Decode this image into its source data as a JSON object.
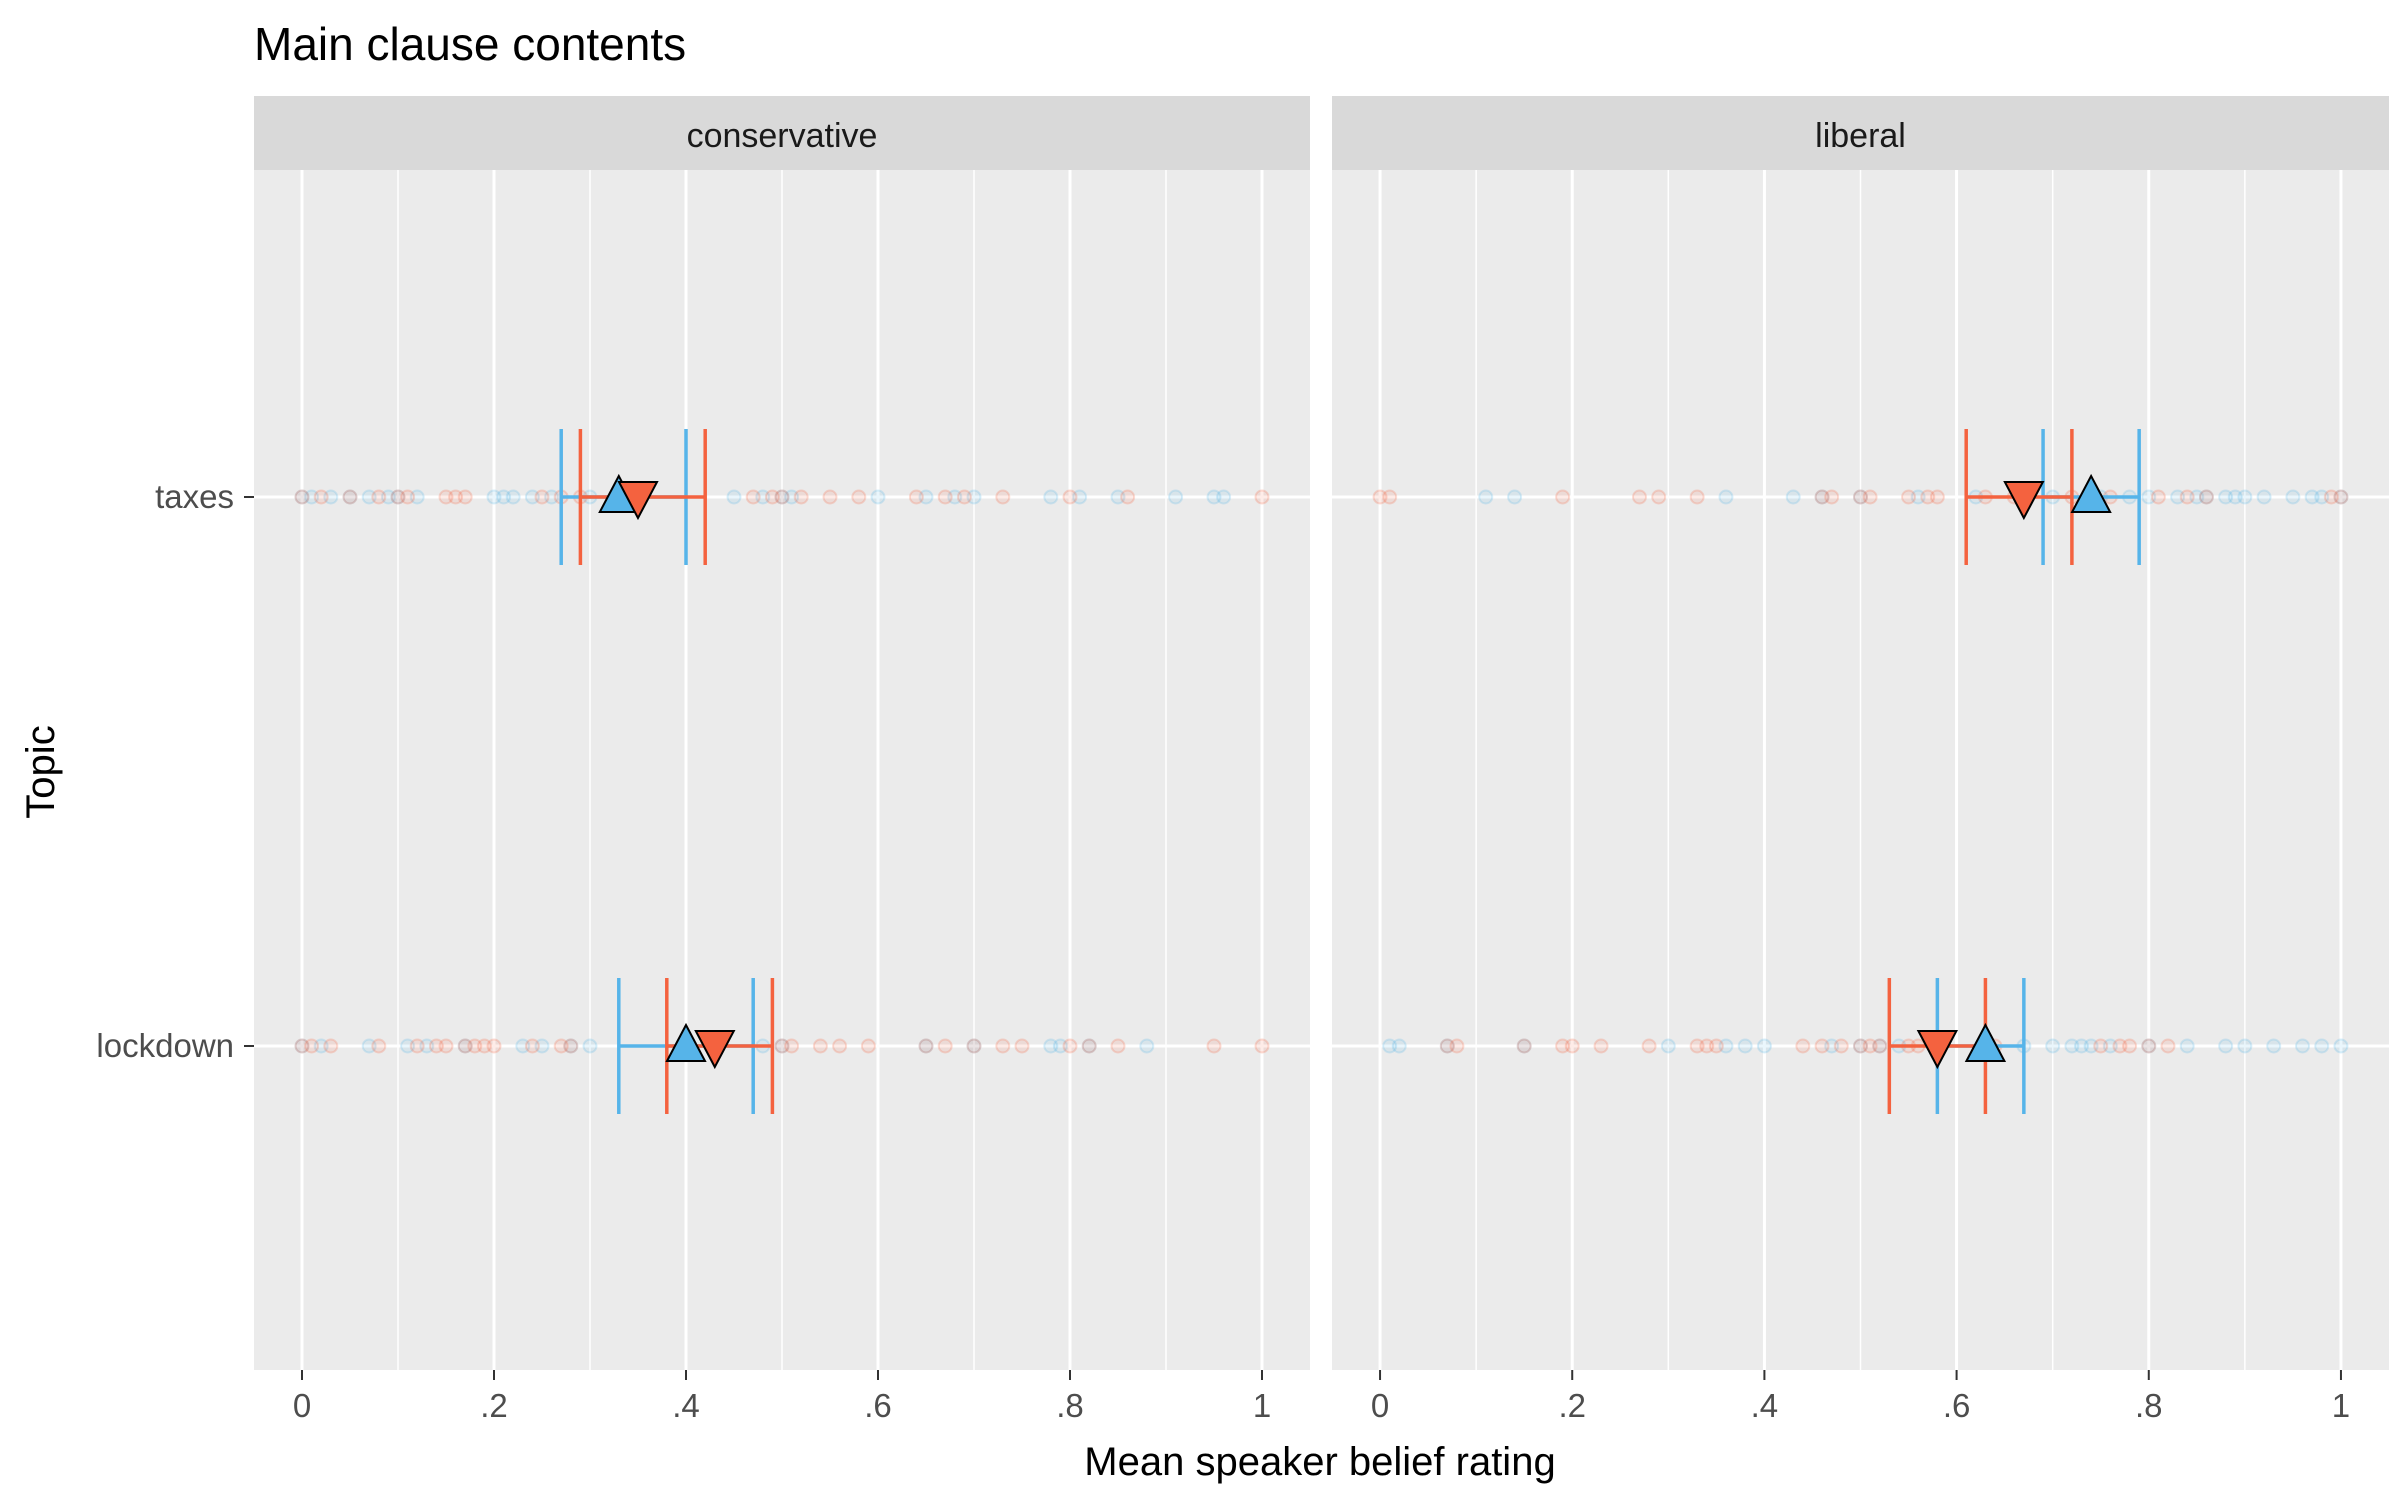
{
  "chart_data": {
    "type": "scatter",
    "title": "Main clause contents",
    "xlabel": "Mean speaker belief rating",
    "ylabel": "Topic",
    "xlim": [
      -0.05,
      1.05
    ],
    "x_ticks": [
      0,
      0.2,
      0.4,
      0.6,
      0.8,
      1
    ],
    "x_tick_labels": [
      "0",
      ".2",
      ".4",
      ".6",
      ".8",
      "1"
    ],
    "grid": true,
    "categories": [
      "taxes",
      "lockdown"
    ],
    "facets": [
      "conservative",
      "liberal"
    ],
    "colors": {
      "blue": "#56B4E9",
      "red": "#F4623F",
      "panel": "#EBEBEB",
      "strip": "#D9D9D9"
    },
    "series": [
      {
        "shape": "triangle-up",
        "color": "#56B4E9",
        "summaries": {
          "conservative": {
            "taxes": {
              "mean": 0.33,
              "ci": [
                0.27,
                0.4
              ]
            },
            "lockdown": {
              "mean": 0.4,
              "ci": [
                0.33,
                0.47
              ]
            }
          },
          "liberal": {
            "taxes": {
              "mean": 0.74,
              "ci": [
                0.69,
                0.79
              ]
            },
            "lockdown": {
              "mean": 0.63,
              "ci": [
                0.58,
                0.67
              ]
            }
          }
        },
        "points": {
          "conservative": {
            "taxes": [
              0,
              0.01,
              0.03,
              0.05,
              0.07,
              0.09,
              0.1,
              0.12,
              0.2,
              0.21,
              0.22,
              0.24,
              0.26,
              0.3,
              0.45,
              0.48,
              0.5,
              0.51,
              0.6,
              0.65,
              0.68,
              0.7,
              0.78,
              0.81,
              0.85,
              0.91,
              0.95,
              0.96
            ],
            "lockdown": [
              0,
              0.02,
              0.07,
              0.11,
              0.13,
              0.17,
              0.23,
              0.25,
              0.28,
              0.3,
              0.48,
              0.5,
              0.65,
              0.7,
              0.78,
              0.79,
              0.82,
              0.88
            ]
          },
          "liberal": {
            "taxes": [
              0.11,
              0.14,
              0.36,
              0.43,
              0.46,
              0.5,
              0.56,
              0.62,
              0.7,
              0.74,
              0.75,
              0.78,
              0.8,
              0.83,
              0.85,
              0.86,
              0.88,
              0.89,
              0.9,
              0.92,
              0.95,
              0.97,
              0.98,
              1
            ],
            "lockdown": [
              0.01,
              0.02,
              0.07,
              0.15,
              0.3,
              0.36,
              0.38,
              0.4,
              0.47,
              0.5,
              0.52,
              0.54,
              0.67,
              0.7,
              0.72,
              0.73,
              0.74,
              0.76,
              0.8,
              0.84,
              0.88,
              0.9,
              0.93,
              0.96,
              0.98,
              1
            ]
          }
        }
      },
      {
        "shape": "triangle-down",
        "color": "#F4623F",
        "summaries": {
          "conservative": {
            "taxes": {
              "mean": 0.35,
              "ci": [
                0.29,
                0.42
              ]
            },
            "lockdown": {
              "mean": 0.43,
              "ci": [
                0.38,
                0.49
              ]
            }
          },
          "liberal": {
            "taxes": {
              "mean": 0.67,
              "ci": [
                0.61,
                0.72
              ]
            },
            "lockdown": {
              "mean": 0.58,
              "ci": [
                0.53,
                0.63
              ]
            }
          }
        },
        "points": {
          "conservative": {
            "taxes": [
              0,
              0.02,
              0.05,
              0.08,
              0.1,
              0.11,
              0.15,
              0.16,
              0.17,
              0.25,
              0.27,
              0.29,
              0.47,
              0.49,
              0.5,
              0.52,
              0.55,
              0.58,
              0.64,
              0.67,
              0.69,
              0.73,
              0.8,
              0.86,
              1
            ],
            "lockdown": [
              0,
              0.01,
              0.03,
              0.08,
              0.12,
              0.14,
              0.15,
              0.17,
              0.18,
              0.19,
              0.2,
              0.24,
              0.27,
              0.28,
              0.5,
              0.51,
              0.54,
              0.56,
              0.59,
              0.65,
              0.67,
              0.7,
              0.73,
              0.75,
              0.8,
              0.82,
              0.85,
              0.95,
              1
            ]
          },
          "liberal": {
            "taxes": [
              0,
              0.01,
              0.19,
              0.27,
              0.29,
              0.33,
              0.46,
              0.47,
              0.5,
              0.51,
              0.55,
              0.57,
              0.58,
              0.63,
              0.66,
              0.72,
              0.76,
              0.81,
              0.84,
              0.86,
              0.99,
              1
            ],
            "lockdown": [
              0.07,
              0.08,
              0.15,
              0.19,
              0.2,
              0.23,
              0.28,
              0.33,
              0.34,
              0.35,
              0.44,
              0.46,
              0.48,
              0.5,
              0.51,
              0.52,
              0.55,
              0.56,
              0.64,
              0.75,
              0.77,
              0.78,
              0.8,
              0.82
            ]
          }
        }
      }
    ]
  }
}
